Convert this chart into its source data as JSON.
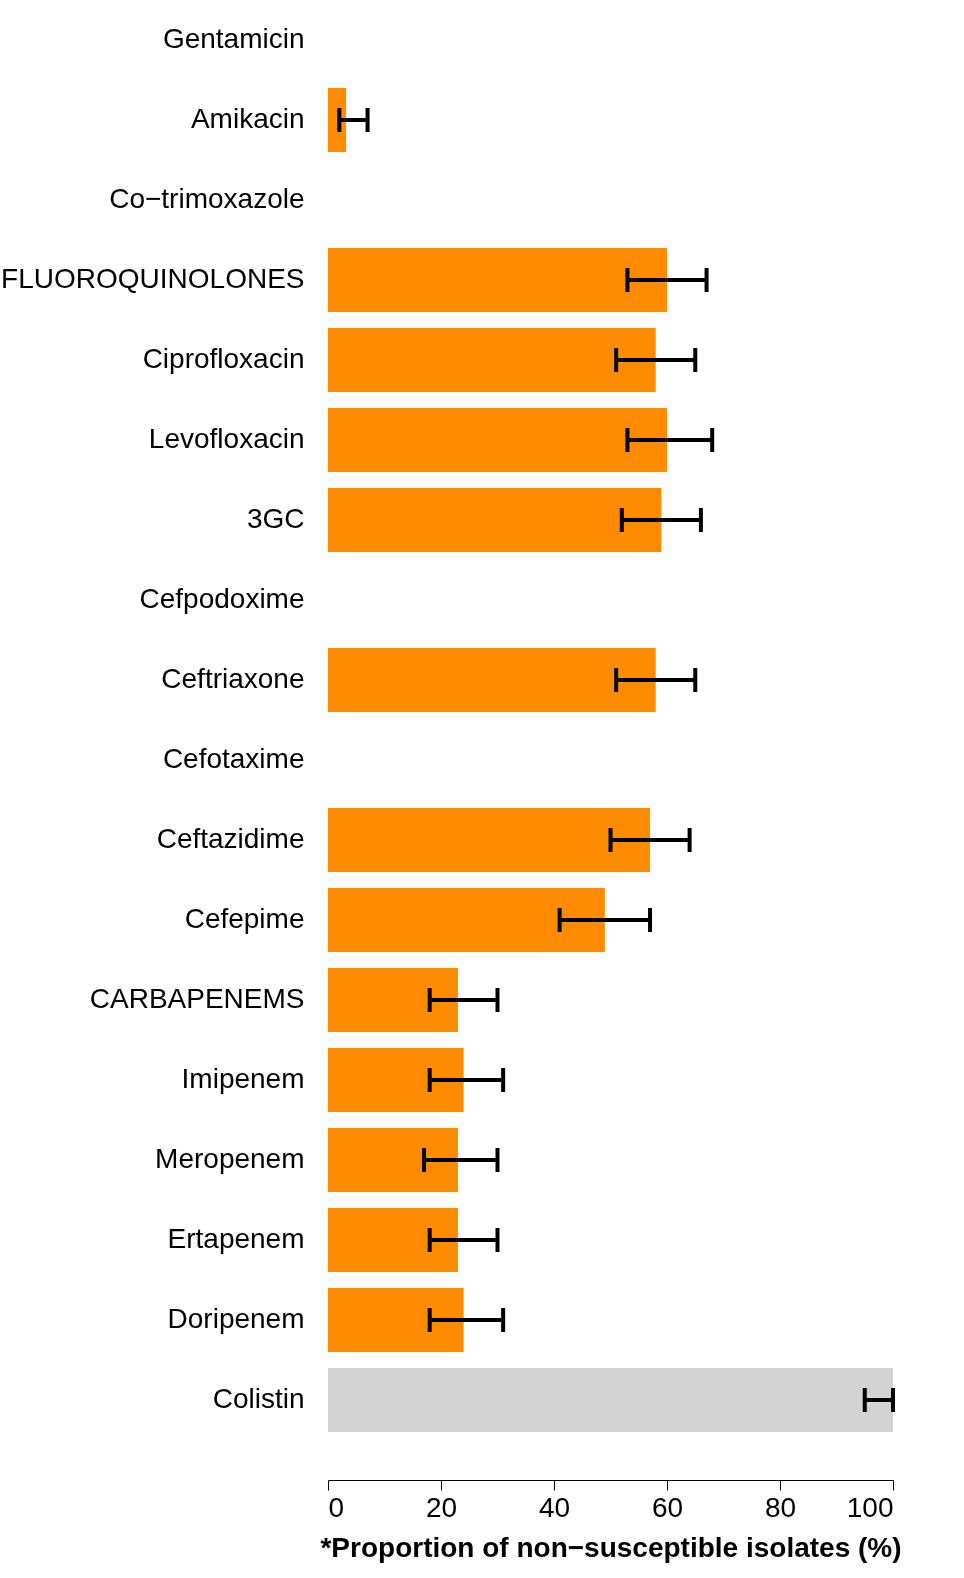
{
  "chart_data": {
    "type": "bar",
    "orientation": "horizontal",
    "xlabel": "*Proportion of non−susceptible isolates (%)",
    "categories": [
      "Gentamicin",
      "Amikacin",
      "Co−trimoxazole",
      "FLUOROQUINOLONES",
      "Ciprofloxacin",
      "Levofloxacin",
      "3GC",
      "Cefpodoxime",
      "Ceftriaxone",
      "Cefotaxime",
      "Ceftazidime",
      "Cefepime",
      "CARBAPENEMS",
      "Imipenem",
      "Meropenem",
      "Ertapenem",
      "Doripenem",
      "Colistin"
    ],
    "values": [
      null,
      3.2,
      null,
      60,
      58,
      60,
      59,
      null,
      58,
      null,
      57,
      49,
      23,
      24,
      23,
      23,
      24,
      100
    ],
    "errors": [
      null,
      [
        2,
        7
      ],
      null,
      [
        53,
        67
      ],
      [
        51,
        65
      ],
      [
        53,
        68
      ],
      [
        52,
        66
      ],
      null,
      [
        51,
        65
      ],
      null,
      [
        50,
        64
      ],
      [
        41,
        57
      ],
      [
        18,
        30
      ],
      [
        18,
        31
      ],
      [
        17,
        30
      ],
      [
        18,
        30
      ],
      [
        18,
        31
      ],
      [
        95,
        100
      ]
    ],
    "colors": [
      "#ff8c00",
      "#ff8c00",
      "#ff8c00",
      "#ff8c00",
      "#ff8c00",
      "#ff8c00",
      "#ff8c00",
      "#ff8c00",
      "#ff8c00",
      "#ff8c00",
      "#ff8c00",
      "#ff8c00",
      "#ff8c00",
      "#ff8c00",
      "#ff8c00",
      "#ff8c00",
      "#ff8c00",
      "#d3d3d3"
    ],
    "xlim": [
      0,
      100
    ],
    "xticks": [
      0,
      20,
      40,
      60,
      80,
      100
    ],
    "grid": false
  }
}
